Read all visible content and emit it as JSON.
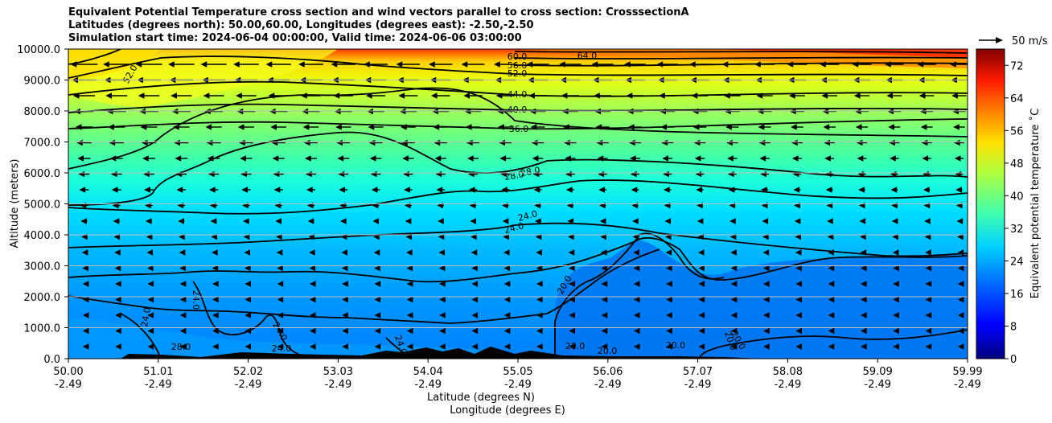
{
  "chart_data": {
    "type": "heatmap",
    "title_lines": [
      "Equivalent Potential Temperature cross section and wind vectors parallel to cross section: CrosssectionA",
      "Latitudes (degrees north): 50.00,60.00, Longitudes (degrees east): -2.50,-2.50",
      "Simulation start time: 2024-06-04 00:00:00, Valid time: 2024-06-06 03:00:00"
    ],
    "xlabel_lat": "Latitude (degrees N)",
    "xlabel_lon": "Longitude (degrees E)",
    "ylabel": "Altitude (meters)",
    "x_lat_ticks": [
      "50.00",
      "51.01",
      "52.02",
      "53.03",
      "54.04",
      "55.05",
      "56.06",
      "57.07",
      "58.08",
      "59.09",
      "59.99"
    ],
    "x_lon_ticks": [
      "-2.49",
      "-2.49",
      "-2.49",
      "-2.49",
      "-2.49",
      "-2.49",
      "-2.49",
      "-2.49",
      "-2.49",
      "-2.49",
      "-2.49"
    ],
    "xlim": [
      50.0,
      59.99
    ],
    "ylim": [
      0,
      10000
    ],
    "y_ticks": [
      "0.0",
      "1000.0",
      "2000.0",
      "3000.0",
      "4000.0",
      "5000.0",
      "6000.0",
      "7000.0",
      "8000.0",
      "9000.0",
      "10000.0"
    ],
    "y_tick_values": [
      0,
      1000,
      2000,
      3000,
      4000,
      5000,
      6000,
      7000,
      8000,
      9000,
      10000
    ],
    "colorbar": {
      "label": "Equivalent potential temperature ˚C",
      "range": [
        0,
        76
      ],
      "ticks": [
        "0",
        "8",
        "16",
        "24",
        "32",
        "40",
        "48",
        "56",
        "64",
        "72"
      ],
      "tick_values": [
        0,
        8,
        16,
        24,
        32,
        40,
        48,
        56,
        64,
        72
      ]
    },
    "wind_key_label": "50 m/s",
    "contour_levels": [
      20,
      24,
      28,
      36,
      40,
      44,
      52,
      56,
      60,
      64
    ],
    "contour_labels": [
      "64.0",
      "60.0",
      "56.0",
      "52.0",
      "44.0",
      "40.0",
      "36.0",
      "28.0",
      "28.0",
      "24.0",
      "24.0",
      "24.0",
      "24.0",
      "24.0",
      "24.0",
      "20.0",
      "20.0",
      "20.0",
      "20.0",
      "24.0",
      "28.0",
      "20.0",
      "20.0",
      "52.0"
    ]
  }
}
